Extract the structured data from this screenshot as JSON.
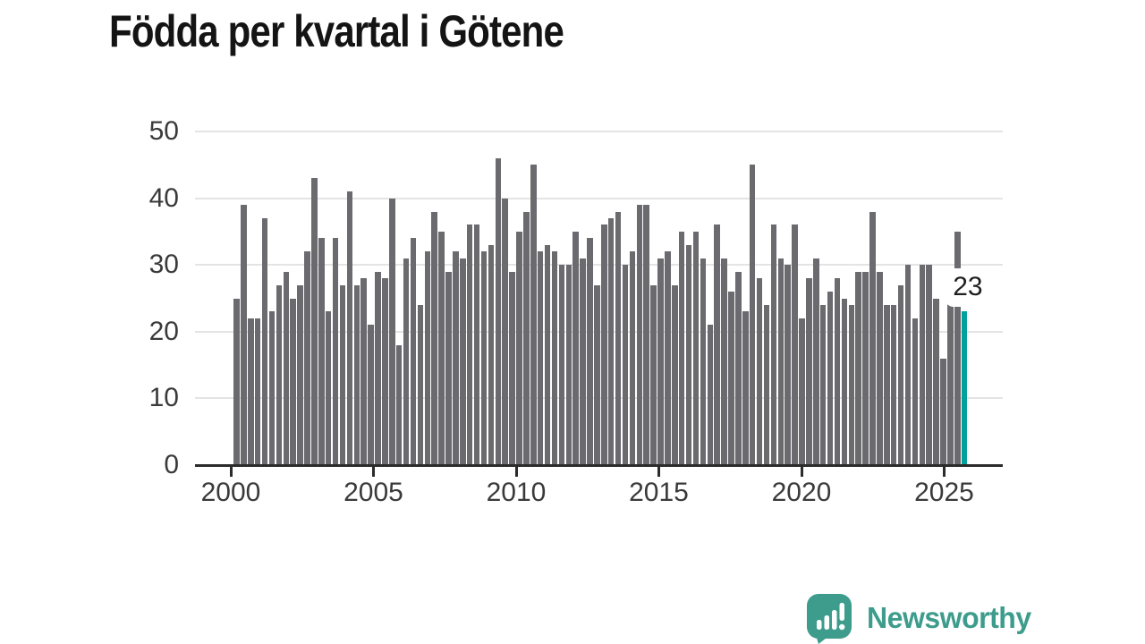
{
  "chart_data": {
    "type": "bar",
    "title": "Födda per kvartal i Götene",
    "x_start_year": 2000,
    "x_unit": "quarter",
    "values": [
      25,
      39,
      22,
      22,
      37,
      23,
      27,
      29,
      25,
      27,
      32,
      43,
      34,
      23,
      34,
      27,
      41,
      27,
      28,
      21,
      29,
      28,
      40,
      18,
      31,
      34,
      24,
      32,
      38,
      35,
      29,
      32,
      31,
      36,
      36,
      32,
      33,
      46,
      40,
      29,
      35,
      38,
      45,
      32,
      33,
      32,
      30,
      30,
      35,
      31,
      34,
      27,
      36,
      37,
      38,
      30,
      32,
      39,
      39,
      27,
      31,
      32,
      27,
      35,
      33,
      35,
      31,
      21,
      36,
      31,
      26,
      29,
      23,
      45,
      28,
      24,
      36,
      31,
      30,
      36,
      22,
      28,
      31,
      24,
      26,
      28,
      25,
      24,
      29,
      29,
      38,
      29,
      24,
      24,
      27,
      30,
      22,
      30,
      30,
      25,
      16,
      29,
      35,
      23
    ],
    "x_tick_labels": [
      "2000",
      "2005",
      "2010",
      "2015",
      "2020",
      "2025"
    ],
    "y_ticks": [
      "0",
      "10",
      "20",
      "30",
      "40",
      "50"
    ],
    "ylim": [
      0,
      50
    ],
    "grid": "horizontal",
    "legend": "none",
    "bar_color": "#6a6a6f",
    "highlight_color": "#00a19b",
    "highlight_index": 103,
    "last_value_label": "23"
  },
  "branding": {
    "logo_text": "Newsworthy",
    "logo_icon": "newsworthy-speech-bubble-chart-icon",
    "logo_color": "#3d9c8c"
  }
}
